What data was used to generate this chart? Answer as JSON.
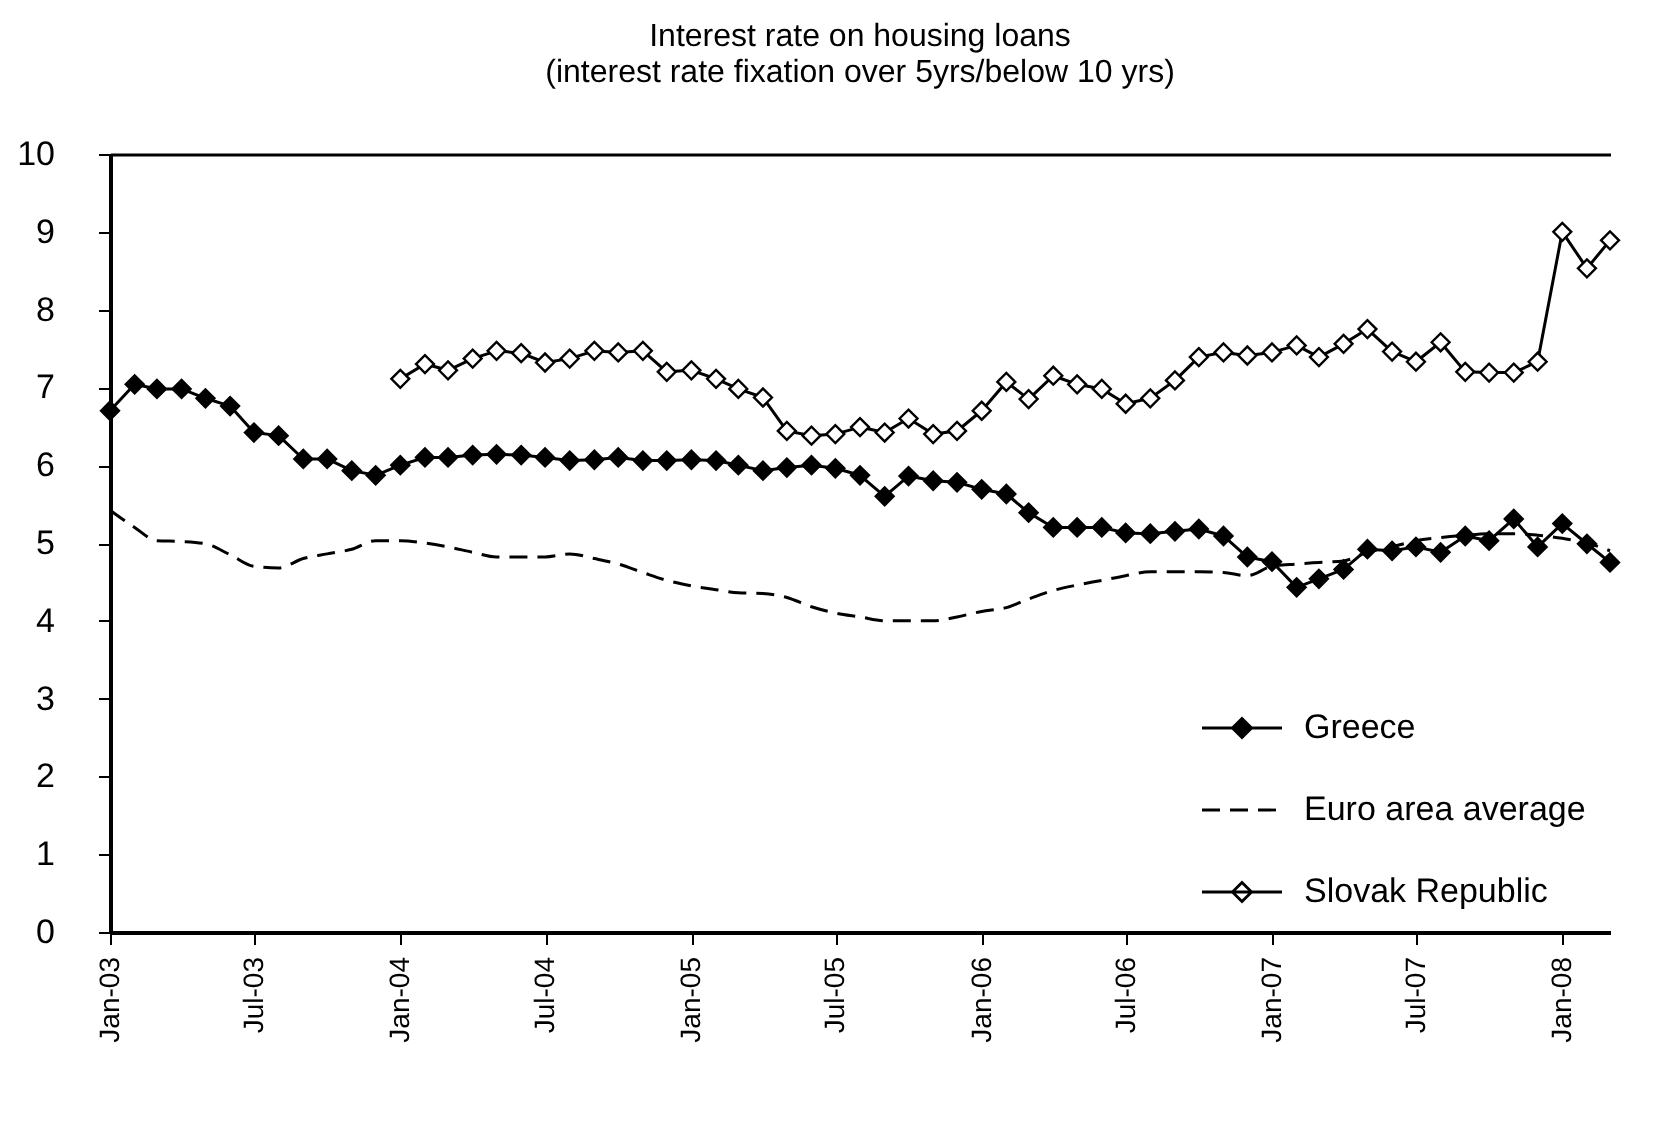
{
  "chart_data": {
    "type": "line",
    "title": "Interest rate on housing loans",
    "subtitle": "(interest rate fixation over 5yrs/below 10 yrs)",
    "x": [
      "2003-01",
      "2003-02",
      "2003-03",
      "2003-04",
      "2003-05",
      "2003-06",
      "2003-07",
      "2003-08",
      "2003-09",
      "2003-10",
      "2003-11",
      "2003-12",
      "2004-01",
      "2004-02",
      "2004-03",
      "2004-04",
      "2004-05",
      "2004-06",
      "2004-07",
      "2004-08",
      "2004-09",
      "2004-10",
      "2004-11",
      "2004-12",
      "2005-01",
      "2005-02",
      "2005-03",
      "2005-04",
      "2005-05",
      "2005-06",
      "2005-07",
      "2005-08",
      "2005-09",
      "2005-10",
      "2005-11",
      "2005-12",
      "2006-01",
      "2006-02",
      "2006-03",
      "2006-04",
      "2006-05",
      "2006-06",
      "2006-07",
      "2006-08",
      "2006-09",
      "2006-10",
      "2006-11",
      "2006-12",
      "2007-01",
      "2007-02",
      "2007-03",
      "2007-04",
      "2007-05",
      "2007-06",
      "2007-07",
      "2007-08",
      "2007-09",
      "2007-10",
      "2007-11",
      "2007-12",
      "2008-01",
      "2008-02",
      "2008-03"
    ],
    "series": [
      {
        "name": "Greece",
        "color": "#000000",
        "marker": "diamond",
        "line_style": "solid",
        "values": [
          6.7,
          7.04,
          6.98,
          6.98,
          6.86,
          6.76,
          6.42,
          6.38,
          6.08,
          6.08,
          5.93,
          5.87,
          6.0,
          6.1,
          6.1,
          6.13,
          6.14,
          6.13,
          6.1,
          6.06,
          6.07,
          6.1,
          6.06,
          6.06,
          6.07,
          6.06,
          6.0,
          5.93,
          5.97,
          6.0,
          5.96,
          5.87,
          5.6,
          5.86,
          5.8,
          5.78,
          5.69,
          5.63,
          5.39,
          5.2,
          5.2,
          5.2,
          5.13,
          5.12,
          5.15,
          5.18,
          5.09,
          4.82,
          4.76,
          4.43,
          4.54,
          4.66,
          4.92,
          4.9,
          4.95,
          4.88,
          5.09,
          5.03,
          5.31,
          4.95,
          5.25,
          4.99,
          4.75
        ]
      },
      {
        "name": "Euro area average",
        "color": "#000000",
        "marker": "none",
        "line_style": "dashed",
        "values": [
          5.42,
          5.2,
          5.03,
          5.02,
          4.99,
          4.85,
          4.7,
          4.68,
          4.8,
          4.86,
          4.92,
          5.03,
          5.03,
          5.0,
          4.95,
          4.88,
          4.82,
          4.82,
          4.82,
          4.86,
          4.8,
          4.73,
          4.62,
          4.52,
          4.45,
          4.4,
          4.36,
          4.35,
          4.3,
          4.18,
          4.1,
          4.05,
          4.0,
          4.0,
          4.0,
          4.05,
          4.12,
          4.17,
          4.28,
          4.39,
          4.46,
          4.52,
          4.58,
          4.63,
          4.63,
          4.63,
          4.62,
          4.58,
          4.7,
          4.73,
          4.75,
          4.77,
          4.88,
          4.95,
          5.03,
          5.07,
          5.1,
          5.12,
          5.12,
          5.1,
          5.06,
          5.0,
          4.9
        ]
      },
      {
        "name": "Slovak Republic",
        "color": "#000000",
        "marker": "diamond",
        "line_style": "solid",
        "values": [
          null,
          null,
          null,
          null,
          null,
          null,
          null,
          null,
          null,
          null,
          null,
          null,
          7.11,
          7.3,
          7.22,
          7.37,
          7.47,
          7.44,
          7.32,
          7.37,
          7.47,
          7.45,
          7.47,
          7.2,
          7.22,
          7.11,
          6.98,
          6.87,
          6.44,
          6.38,
          6.4,
          6.49,
          6.42,
          6.6,
          6.4,
          6.44,
          6.7,
          7.07,
          6.85,
          7.15,
          7.04,
          6.98,
          6.79,
          6.86,
          7.09,
          7.39,
          7.45,
          7.41,
          7.45,
          7.54,
          7.39,
          7.56,
          7.75,
          7.46,
          7.33,
          7.58,
          7.2,
          7.19,
          7.19,
          7.33,
          9.0,
          8.53,
          8.89
        ]
      }
    ],
    "xlim": [
      "2003-01",
      "2008-03"
    ],
    "xticks": [
      {
        "value": "2003-01",
        "label": "Jan-03"
      },
      {
        "value": "2003-07",
        "label": "Jul-03"
      },
      {
        "value": "2004-01",
        "label": "Jan-04"
      },
      {
        "value": "2004-07",
        "label": "Jul-04"
      },
      {
        "value": "2005-01",
        "label": "Jan-05"
      },
      {
        "value": "2005-07",
        "label": "Jul-05"
      },
      {
        "value": "2006-01",
        "label": "Jan-06"
      },
      {
        "value": "2006-07",
        "label": "Jul-06"
      },
      {
        "value": "2007-01",
        "label": "Jan-07"
      },
      {
        "value": "2007-07",
        "label": "Jul-07"
      },
      {
        "value": "2008-01",
        "label": "Jan-08"
      }
    ],
    "ylim": [
      0,
      10
    ],
    "yticks": [
      0,
      1,
      2,
      3,
      4,
      5,
      6,
      7,
      8,
      9,
      10
    ],
    "legend": "bottom right"
  }
}
